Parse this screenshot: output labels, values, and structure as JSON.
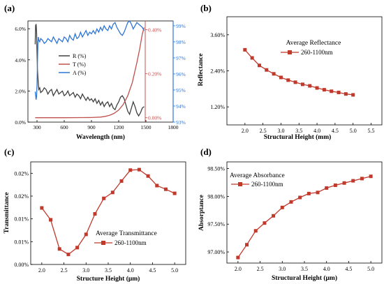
{
  "chart_data": [
    {
      "panel": "(a)",
      "type": "line",
      "xlabel": "Wavelength (nm)",
      "x_ticks": [
        "300",
        "600",
        "900",
        "1200",
        "1500",
        "1800"
      ],
      "xlim": [
        200,
        1800
      ],
      "y_left_ticks": [
        "0.0%",
        "2.0%",
        "4.0%",
        "6.0%"
      ],
      "y_mid_ticks": [
        "0.00%",
        "0.20%",
        "0.40%"
      ],
      "y_right_ticks": [
        "93%",
        "94%",
        "95%",
        "96%",
        "97%",
        "98%",
        "99%"
      ],
      "legend": [
        "R (%)",
        "T (%)",
        "A (%)"
      ],
      "colors": {
        "R": "#404040",
        "T": "#c0504d",
        "A": "#2e75d6",
        "mid_axis": "#c0504d",
        "right_axis": "#2e75d6"
      },
      "series": [
        {
          "name": "R (%)",
          "axis": "left",
          "ylim": [
            0,
            6.5
          ],
          "x": [
            280,
            285,
            290,
            295,
            300,
            305,
            310,
            315,
            320,
            330,
            340,
            360,
            380,
            400,
            420,
            440,
            460,
            480,
            500,
            520,
            540,
            560,
            580,
            600,
            620,
            640,
            660,
            680,
            700,
            720,
            740,
            760,
            780,
            800,
            820,
            840,
            860,
            880,
            900,
            920,
            940,
            960,
            980,
            1000,
            1020,
            1040,
            1060,
            1080,
            1100,
            1120,
            1140,
            1160,
            1180,
            1200,
            1220,
            1240,
            1260,
            1280,
            1300,
            1320,
            1340,
            1360,
            1380,
            1400,
            1420,
            1440,
            1460,
            1480
          ],
          "values": [
            5.0,
            6.2,
            6.3,
            5.8,
            4.5,
            3.4,
            2.9,
            2.4,
            2.1,
            2.2,
            1.9,
            2.0,
            2.2,
            2.1,
            1.8,
            2.0,
            2.1,
            1.7,
            1.9,
            2.1,
            1.8,
            1.9,
            2.0,
            1.7,
            1.8,
            2.0,
            1.7,
            1.8,
            1.9,
            1.6,
            1.8,
            1.7,
            1.5,
            1.8,
            1.6,
            1.4,
            1.6,
            1.4,
            1.5,
            1.3,
            1.5,
            1.2,
            1.4,
            1.1,
            1.3,
            1.0,
            1.2,
            1.3,
            1.0,
            1.2,
            0.9,
            0.8,
            1.1,
            1.3,
            1.6,
            1.7,
            1.5,
            1.1,
            0.7,
            0.5,
            0.9,
            1.3,
            1.0,
            0.6,
            0.4,
            0.6,
            0.9,
            1.0
          ]
        },
        {
          "name": "T (%)",
          "axis": "mid",
          "ylim": [
            -0.02,
            0.44
          ],
          "x": [
            280,
            400,
            600,
            800,
            900,
            1000,
            1050,
            1100,
            1150,
            1200,
            1250,
            1300,
            1350,
            1400,
            1430,
            1460,
            1480
          ],
          "values": [
            0.0,
            0.0,
            0.0,
            0.0005,
            0.001,
            0.003,
            0.006,
            0.011,
            0.02,
            0.035,
            0.06,
            0.1,
            0.16,
            0.25,
            0.31,
            0.38,
            0.41
          ]
        },
        {
          "name": "A (%)",
          "axis": "right",
          "ylim": [
            93,
            99.3
          ],
          "x": [
            280,
            285,
            290,
            295,
            300,
            305,
            310,
            315,
            320,
            330,
            340,
            360,
            380,
            400,
            420,
            440,
            460,
            480,
            500,
            520,
            540,
            560,
            580,
            600,
            620,
            640,
            660,
            680,
            700,
            720,
            740,
            760,
            780,
            800,
            820,
            840,
            860,
            880,
            900,
            920,
            940,
            960,
            980,
            1000,
            1020,
            1040,
            1060,
            1080,
            1100,
            1120,
            1140,
            1160,
            1180,
            1200,
            1220,
            1240,
            1260,
            1280,
            1300,
            1320,
            1340,
            1360,
            1380,
            1400,
            1420,
            1440,
            1460,
            1480
          ],
          "values": [
            94.9,
            94.7,
            94.4,
            94.6,
            95.3,
            96.6,
            97.9,
            98.3,
            98.1,
            98.0,
            98.2,
            98.1,
            97.9,
            98.0,
            98.2,
            98.1,
            98.0,
            98.3,
            98.1,
            97.9,
            98.2,
            98.1,
            98.0,
            98.3,
            98.2,
            98.0,
            98.4,
            98.2,
            98.1,
            98.5,
            98.2,
            98.3,
            98.6,
            98.3,
            98.5,
            98.7,
            98.4,
            98.6,
            98.5,
            98.7,
            98.5,
            98.8,
            98.6,
            98.9,
            98.7,
            99.0,
            98.8,
            98.7,
            99.0,
            98.8,
            99.1,
            99.2,
            98.9,
            98.7,
            98.5,
            98.4,
            98.6,
            98.9,
            99.2,
            99.3,
            99.1,
            98.8,
            99.0,
            99.2,
            99.1,
            99.0,
            98.9,
            98.7
          ]
        }
      ]
    },
    {
      "panel": "(b)",
      "type": "line",
      "xlabel": "Structural Height (mm)",
      "ylabel": "Reflectance",
      "xlim": [
        1.5,
        5.8
      ],
      "ylim": [
        0.6,
        4.2
      ],
      "x_ticks": [
        "2.0",
        "2.5",
        "3.0",
        "3.5",
        "4.0",
        "4.5",
        "5.0",
        "5.5"
      ],
      "x_tick_values": [
        2.0,
        2.5,
        3.0,
        3.5,
        4.0,
        4.5,
        5.0,
        5.5
      ],
      "y_ticks": [
        "1.20%",
        "2.40%",
        "3.60%"
      ],
      "y_tick_values": [
        1.2,
        2.4,
        3.6
      ],
      "legend_title": "Average Reflectance",
      "series": [
        {
          "name": "260-1100nm",
          "x": [
            2.0,
            2.2,
            2.4,
            2.6,
            2.8,
            3.0,
            3.2,
            3.4,
            3.6,
            3.8,
            4.0,
            4.2,
            4.4,
            4.6,
            4.8,
            5.0
          ],
          "values": [
            3.1,
            2.83,
            2.58,
            2.43,
            2.3,
            2.18,
            2.09,
            2.02,
            1.95,
            1.9,
            1.83,
            1.77,
            1.72,
            1.68,
            1.63,
            1.6
          ]
        }
      ]
    },
    {
      "panel": "(c)",
      "type": "line",
      "xlabel": "Structure Height (μm)",
      "ylabel": "Transmittance",
      "xlim": [
        1.75,
        5.25
      ],
      "ylim": [
        0,
        0.0225
      ],
      "x_ticks": [
        "2.0",
        "2.5",
        "3.0",
        "3.5",
        "4.0",
        "4.5",
        "5.0"
      ],
      "x_tick_values": [
        2.0,
        2.5,
        3.0,
        3.5,
        4.0,
        4.5,
        5.0
      ],
      "y_ticks": [
        "0.00%",
        "0.01%",
        "0.01%",
        "0.02%",
        "0.02%"
      ],
      "y_tick_values": [
        0.0,
        0.005,
        0.01,
        0.015,
        0.02
      ],
      "legend_title": "Average Transmittance",
      "series": [
        {
          "name": "260-1100nm",
          "x": [
            2.0,
            2.2,
            2.4,
            2.6,
            2.8,
            3.0,
            3.2,
            3.4,
            3.6,
            3.8,
            4.0,
            4.2,
            4.4,
            4.6,
            4.8,
            5.0
          ],
          "values": [
            0.0124,
            0.0098,
            0.0034,
            0.0022,
            0.0037,
            0.0066,
            0.0111,
            0.0145,
            0.0158,
            0.0183,
            0.0207,
            0.0208,
            0.0194,
            0.0173,
            0.0165,
            0.0156
          ]
        }
      ]
    },
    {
      "panel": "(d)",
      "type": "line",
      "xlabel": "Structural Height (μm)",
      "ylabel": "Absorptance",
      "xlim": [
        1.75,
        5.25
      ],
      "ylim": [
        96.8,
        98.62
      ],
      "x_ticks": [
        "2.0",
        "2.5",
        "3.0",
        "3.5",
        "4.0",
        "4.5",
        "5.0"
      ],
      "x_tick_values": [
        2.0,
        2.5,
        3.0,
        3.5,
        4.0,
        4.5,
        5.0
      ],
      "y_ticks": [
        "97.00%",
        "97.50%",
        "98.00%",
        "98.50%"
      ],
      "y_tick_values": [
        97.0,
        97.5,
        98.0,
        98.5
      ],
      "legend_title": "Average Absorbance",
      "series": [
        {
          "name": "260-1100nm",
          "x": [
            2.0,
            2.2,
            2.4,
            2.6,
            2.8,
            3.0,
            3.2,
            3.4,
            3.6,
            3.8,
            4.0,
            4.2,
            4.4,
            4.6,
            4.8,
            5.0
          ],
          "values": [
            96.9,
            97.13,
            97.38,
            97.52,
            97.65,
            97.8,
            97.9,
            97.98,
            98.05,
            98.07,
            98.15,
            98.2,
            98.24,
            98.28,
            98.32,
            98.36
          ]
        }
      ]
    }
  ],
  "series_color": "#c0392b"
}
